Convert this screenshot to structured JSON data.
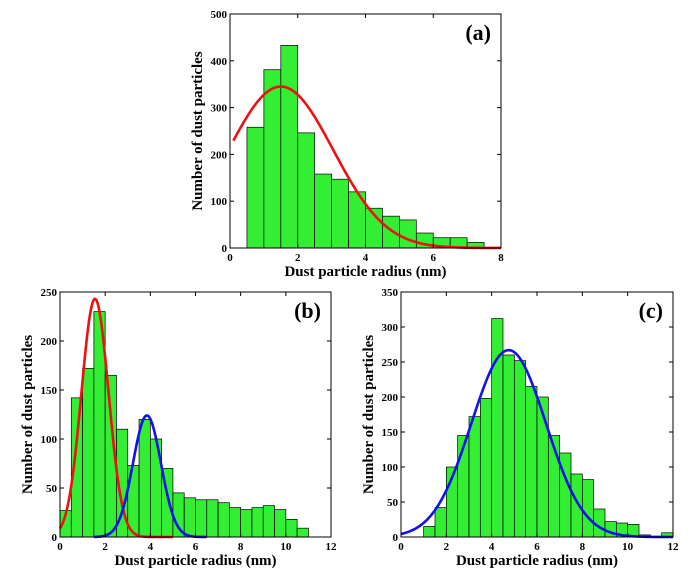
{
  "chart_data": [
    {
      "id": "a",
      "type": "bar",
      "panel_label": "(a)",
      "xlabel": "Dust particle radius (nm)",
      "ylabel": "Number of dust particles",
      "xlim": [
        0,
        8
      ],
      "ylim": [
        0,
        500
      ],
      "xticks": [
        0,
        2,
        4,
        6,
        8
      ],
      "yticks": [
        0,
        100,
        200,
        300,
        400,
        500
      ],
      "bin_width": 0.5,
      "bins": [
        {
          "x0": 0.5,
          "value": 258
        },
        {
          "x0": 1.0,
          "value": 381
        },
        {
          "x0": 1.5,
          "value": 433
        },
        {
          "x0": 2.0,
          "value": 246
        },
        {
          "x0": 2.5,
          "value": 158
        },
        {
          "x0": 3.0,
          "value": 147
        },
        {
          "x0": 3.5,
          "value": 120
        },
        {
          "x0": 4.0,
          "value": 85
        },
        {
          "x0": 4.5,
          "value": 68
        },
        {
          "x0": 5.0,
          "value": 60
        },
        {
          "x0": 5.5,
          "value": 32
        },
        {
          "x0": 6.0,
          "value": 22
        },
        {
          "x0": 6.5,
          "value": 22
        },
        {
          "x0": 7.0,
          "value": 12
        }
      ],
      "fits": [
        {
          "color": "#ee1111",
          "amplitude": 345,
          "mean": 1.5,
          "sigma": 1.55,
          "x_range": [
            0.1,
            8.0
          ]
        }
      ]
    },
    {
      "id": "b",
      "type": "bar",
      "panel_label": "(b)",
      "xlabel": "Dust particle radius (nm)",
      "ylabel": "Number of dust particles",
      "xlim": [
        0,
        12
      ],
      "ylim": [
        0,
        250
      ],
      "xticks": [
        0,
        2,
        4,
        6,
        8,
        10,
        12
      ],
      "yticks": [
        0,
        50,
        100,
        150,
        200,
        250
      ],
      "bin_width": 0.5,
      "bins": [
        {
          "x0": 0.0,
          "value": 27
        },
        {
          "x0": 0.5,
          "value": 142
        },
        {
          "x0": 1.0,
          "value": 172
        },
        {
          "x0": 1.5,
          "value": 230
        },
        {
          "x0": 2.0,
          "value": 165
        },
        {
          "x0": 2.5,
          "value": 110
        },
        {
          "x0": 3.0,
          "value": 73
        },
        {
          "x0": 3.5,
          "value": 120
        },
        {
          "x0": 4.0,
          "value": 100
        },
        {
          "x0": 4.5,
          "value": 70
        },
        {
          "x0": 5.0,
          "value": 45
        },
        {
          "x0": 5.5,
          "value": 40
        },
        {
          "x0": 6.0,
          "value": 38
        },
        {
          "x0": 6.5,
          "value": 38
        },
        {
          "x0": 7.0,
          "value": 35
        },
        {
          "x0": 7.5,
          "value": 30
        },
        {
          "x0": 8.0,
          "value": 28
        },
        {
          "x0": 8.5,
          "value": 30
        },
        {
          "x0": 9.0,
          "value": 32
        },
        {
          "x0": 9.5,
          "value": 28
        },
        {
          "x0": 10.0,
          "value": 18
        },
        {
          "x0": 10.5,
          "value": 9
        }
      ],
      "fits": [
        {
          "color": "#ee1111",
          "amplitude": 243,
          "mean": 1.55,
          "sigma": 0.6,
          "x_range": [
            0.0,
            5.0
          ]
        },
        {
          "color": "#1111ee",
          "amplitude": 124,
          "mean": 3.85,
          "sigma": 0.62,
          "x_range": [
            1.5,
            6.5
          ]
        }
      ]
    },
    {
      "id": "c",
      "type": "bar",
      "panel_label": "(c)",
      "xlabel": "Dust particle radius (nm)",
      "ylabel": "Number of dust particles",
      "xlim": [
        0,
        12
      ],
      "ylim": [
        0,
        350
      ],
      "xticks": [
        0,
        2,
        4,
        6,
        8,
        10,
        12
      ],
      "yticks": [
        0,
        50,
        100,
        150,
        200,
        250,
        300,
        350
      ],
      "bin_width": 0.5,
      "bins": [
        {
          "x0": 1.0,
          "value": 15
        },
        {
          "x0": 1.5,
          "value": 42
        },
        {
          "x0": 2.0,
          "value": 100
        },
        {
          "x0": 2.5,
          "value": 145
        },
        {
          "x0": 3.0,
          "value": 172
        },
        {
          "x0": 3.5,
          "value": 198
        },
        {
          "x0": 4.0,
          "value": 312
        },
        {
          "x0": 4.5,
          "value": 260
        },
        {
          "x0": 5.0,
          "value": 252
        },
        {
          "x0": 5.5,
          "value": 215
        },
        {
          "x0": 6.0,
          "value": 200
        },
        {
          "x0": 6.5,
          "value": 145
        },
        {
          "x0": 7.0,
          "value": 120
        },
        {
          "x0": 7.5,
          "value": 90
        },
        {
          "x0": 8.0,
          "value": 82
        },
        {
          "x0": 8.5,
          "value": 40
        },
        {
          "x0": 9.0,
          "value": 22
        },
        {
          "x0": 9.5,
          "value": 20
        },
        {
          "x0": 10.0,
          "value": 18
        },
        {
          "x0": 10.5,
          "value": 3
        },
        {
          "x0": 11.5,
          "value": 6
        }
      ],
      "fits": [
        {
          "color": "#1111ee",
          "amplitude": 267,
          "mean": 4.75,
          "sigma": 1.65,
          "x_range": [
            0.0,
            12.0
          ]
        }
      ]
    }
  ]
}
